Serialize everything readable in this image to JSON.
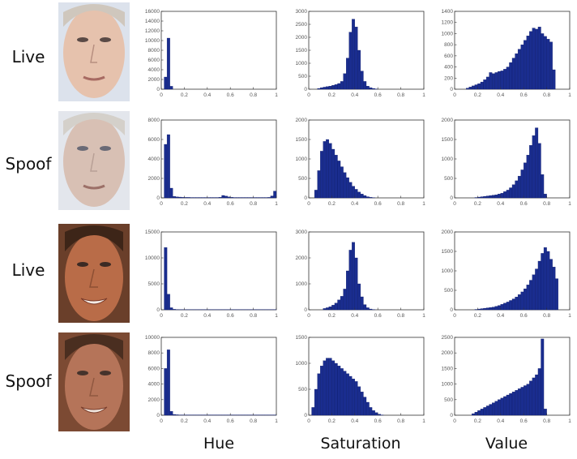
{
  "row_labels": [
    "Live",
    "Spoof",
    "Live",
    "Spoof"
  ],
  "column_labels": [
    "Hue",
    "Saturation",
    "Value"
  ],
  "colors": {
    "bar": "#1a2d8f",
    "bar_edge": "#0d1a66",
    "axis": "#333333",
    "skin_light": "#e9c8b6",
    "skin_pale": "#d9c0b5",
    "skin_tan": "#b86d4a",
    "skin_tan_spoof": "#b27457"
  },
  "chart_data": [
    {
      "type": "bar",
      "row": 0,
      "col": 0,
      "x_range": [
        0,
        1
      ],
      "ylim": [
        0,
        16000
      ],
      "yticks": [
        "0",
        "2000",
        "4000",
        "6000",
        "8000",
        "10000",
        "12000",
        "14000",
        "16000"
      ],
      "xticks": [
        "0",
        "0.2",
        "0.4",
        "0.6",
        "0.8",
        "1"
      ],
      "values": [
        0,
        2500,
        10500,
        600,
        0,
        0,
        0,
        0,
        0,
        0,
        0,
        0,
        0,
        0,
        0,
        0,
        0,
        0,
        0,
        0,
        0,
        0,
        0,
        0,
        0,
        0,
        0,
        0,
        0,
        0,
        0,
        0,
        0,
        0,
        0,
        0,
        0,
        0,
        0,
        0
      ]
    },
    {
      "type": "bar",
      "row": 0,
      "col": 1,
      "x_range": [
        0,
        1
      ],
      "ylim": [
        0,
        3000
      ],
      "yticks": [
        "0",
        "500",
        "1000",
        "1500",
        "2000",
        "2500",
        "3000"
      ],
      "xticks": [
        "0",
        "0.2",
        "0.4",
        "0.6",
        "0.8",
        "1"
      ],
      "values": [
        0,
        0,
        0,
        30,
        60,
        80,
        100,
        120,
        150,
        180,
        220,
        300,
        600,
        1200,
        2200,
        2700,
        2400,
        1500,
        700,
        300,
        120,
        60,
        30,
        10,
        0,
        0,
        0,
        0,
        0,
        0,
        0,
        0,
        0,
        0,
        0,
        0,
        0,
        0,
        0,
        0
      ]
    },
    {
      "type": "bar",
      "row": 0,
      "col": 2,
      "x_range": [
        0,
        1
      ],
      "ylim": [
        0,
        1400
      ],
      "yticks": [
        "0",
        "200",
        "400",
        "600",
        "800",
        "1000",
        "1200",
        "1400"
      ],
      "xticks": [
        "0",
        "0.2",
        "0.4",
        "0.6",
        "0.8",
        "1"
      ],
      "values": [
        0,
        0,
        0,
        0,
        20,
        40,
        60,
        80,
        100,
        130,
        170,
        220,
        300,
        280,
        300,
        320,
        330,
        360,
        400,
        480,
        560,
        640,
        720,
        800,
        880,
        960,
        1040,
        1100,
        1080,
        1120,
        1000,
        950,
        900,
        850,
        350,
        0,
        0,
        0,
        0,
        0
      ]
    },
    {
      "type": "bar",
      "row": 1,
      "col": 0,
      "x_range": [
        0,
        1
      ],
      "ylim": [
        0,
        8000
      ],
      "yticks": [
        "0",
        "2000",
        "4000",
        "6000",
        "8000"
      ],
      "xticks": [
        "0",
        "0.2",
        "0.4",
        "0.6",
        "0.8",
        "1"
      ],
      "values": [
        0,
        5500,
        6500,
        1000,
        150,
        100,
        80,
        60,
        50,
        50,
        40,
        40,
        40,
        40,
        40,
        40,
        40,
        40,
        40,
        40,
        60,
        250,
        180,
        100,
        60,
        40,
        40,
        40,
        40,
        40,
        40,
        40,
        40,
        40,
        40,
        40,
        40,
        50,
        200,
        700
      ]
    },
    {
      "type": "bar",
      "row": 1,
      "col": 1,
      "x_range": [
        0,
        1
      ],
      "ylim": [
        0,
        2000
      ],
      "yticks": [
        "0",
        "500",
        "1000",
        "1500",
        "2000"
      ],
      "xticks": [
        "0",
        "0.2",
        "0.4",
        "0.6",
        "0.8",
        "1"
      ],
      "values": [
        0,
        0,
        200,
        700,
        1200,
        1450,
        1500,
        1400,
        1250,
        1100,
        950,
        800,
        650,
        520,
        400,
        300,
        220,
        150,
        100,
        60,
        30,
        15,
        5,
        0,
        0,
        0,
        0,
        0,
        0,
        0,
        0,
        0,
        0,
        0,
        0,
        0,
        0,
        0,
        0,
        0
      ]
    },
    {
      "type": "bar",
      "row": 1,
      "col": 2,
      "x_range": [
        0,
        1
      ],
      "ylim": [
        0,
        2000
      ],
      "yticks": [
        "0",
        "500",
        "1000",
        "1500",
        "2000"
      ],
      "xticks": [
        "0",
        "0.2",
        "0.4",
        "0.6",
        "0.8",
        "1"
      ],
      "values": [
        0,
        0,
        0,
        0,
        0,
        0,
        0,
        10,
        20,
        30,
        40,
        50,
        60,
        70,
        80,
        100,
        120,
        160,
        200,
        260,
        340,
        440,
        560,
        720,
        900,
        1100,
        1350,
        1600,
        1800,
        1400,
        600,
        100,
        0,
        0,
        0,
        0,
        0,
        0,
        0,
        0
      ]
    },
    {
      "type": "bar",
      "row": 2,
      "col": 0,
      "x_range": [
        0,
        1
      ],
      "ylim": [
        0,
        15000
      ],
      "yticks": [
        "0",
        "5000",
        "10000",
        "15000"
      ],
      "xticks": [
        "0",
        "0.2",
        "0.4",
        "0.6",
        "0.8",
        "1"
      ],
      "values": [
        0,
        12000,
        3000,
        400,
        100,
        60,
        40,
        40,
        40,
        40,
        40,
        40,
        40,
        40,
        40,
        40,
        40,
        40,
        40,
        40,
        40,
        40,
        40,
        40,
        40,
        40,
        40,
        40,
        40,
        40,
        40,
        40,
        40,
        40,
        40,
        40,
        40,
        40,
        40,
        40
      ]
    },
    {
      "type": "bar",
      "row": 2,
      "col": 1,
      "x_range": [
        0,
        1
      ],
      "ylim": [
        0,
        3000
      ],
      "yticks": [
        "0",
        "1000",
        "2000",
        "3000"
      ],
      "xticks": [
        "0",
        "0.2",
        "0.4",
        "0.6",
        "0.8",
        "1"
      ],
      "values": [
        0,
        0,
        0,
        0,
        0,
        50,
        80,
        120,
        180,
        260,
        380,
        520,
        800,
        1500,
        2300,
        2600,
        2000,
        1000,
        500,
        200,
        80,
        30,
        10,
        0,
        0,
        0,
        0,
        0,
        0,
        0,
        0,
        0,
        0,
        0,
        0,
        0,
        0,
        0,
        0,
        0
      ]
    },
    {
      "type": "bar",
      "row": 2,
      "col": 2,
      "x_range": [
        0,
        1
      ],
      "ylim": [
        0,
        2000
      ],
      "yticks": [
        "0",
        "500",
        "1000",
        "1500",
        "2000"
      ],
      "xticks": [
        "0",
        "0.2",
        "0.4",
        "0.6",
        "0.8",
        "1"
      ],
      "values": [
        0,
        0,
        0,
        0,
        0,
        0,
        0,
        10,
        20,
        30,
        40,
        50,
        60,
        70,
        90,
        110,
        140,
        170,
        200,
        240,
        280,
        330,
        390,
        460,
        540,
        640,
        760,
        900,
        1050,
        1250,
        1450,
        1600,
        1500,
        1300,
        1100,
        800,
        0,
        0,
        0,
        0
      ]
    },
    {
      "type": "bar",
      "row": 3,
      "col": 0,
      "x_range": [
        0,
        1
      ],
      "ylim": [
        0,
        10000
      ],
      "yticks": [
        "0",
        "2000",
        "4000",
        "6000",
        "8000",
        "10000"
      ],
      "xticks": [
        "0",
        "0.2",
        "0.4",
        "0.6",
        "0.8",
        "1"
      ],
      "values": [
        0,
        6000,
        8400,
        500,
        100,
        60,
        40,
        40,
        40,
        40,
        40,
        40,
        40,
        40,
        40,
        40,
        40,
        40,
        40,
        40,
        40,
        40,
        40,
        40,
        40,
        40,
        40,
        40,
        40,
        40,
        40,
        40,
        40,
        40,
        40,
        40,
        40,
        40,
        40,
        40
      ]
    },
    {
      "type": "bar",
      "row": 3,
      "col": 1,
      "x_range": [
        0,
        1
      ],
      "ylim": [
        0,
        1500
      ],
      "yticks": [
        "0",
        "500",
        "1000",
        "1500"
      ],
      "xticks": [
        "0",
        "0.2",
        "0.4",
        "0.6",
        "0.8",
        "1"
      ],
      "values": [
        0,
        150,
        500,
        800,
        950,
        1050,
        1100,
        1100,
        1050,
        1000,
        950,
        900,
        850,
        800,
        750,
        700,
        650,
        550,
        450,
        350,
        250,
        150,
        90,
        50,
        20,
        5,
        0,
        0,
        0,
        0,
        0,
        0,
        0,
        0,
        0,
        0,
        0,
        0,
        0,
        0
      ]
    },
    {
      "type": "bar",
      "row": 3,
      "col": 2,
      "x_range": [
        0,
        1
      ],
      "ylim": [
        0,
        2500
      ],
      "yticks": [
        "0",
        "500",
        "1000",
        "1500",
        "2000",
        "2500"
      ],
      "xticks": [
        "0",
        "0.2",
        "0.4",
        "0.6",
        "0.8",
        "1"
      ],
      "values": [
        0,
        0,
        0,
        0,
        0,
        0,
        50,
        100,
        150,
        200,
        250,
        300,
        350,
        400,
        450,
        500,
        550,
        600,
        650,
        700,
        750,
        800,
        850,
        900,
        950,
        1000,
        1100,
        1200,
        1300,
        1500,
        2450,
        200,
        0,
        0,
        0,
        0,
        0,
        0,
        0,
        0
      ]
    }
  ]
}
